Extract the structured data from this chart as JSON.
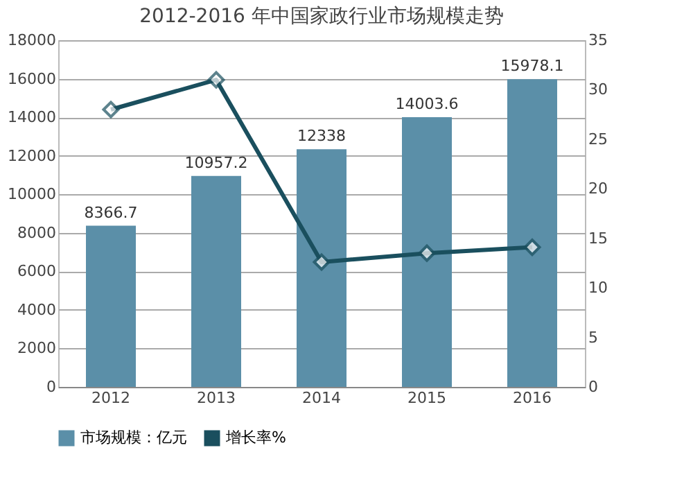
{
  "chart_data": {
    "type": "bar",
    "title": "2012-2016 年中国家政行业市场规模走势",
    "categories": [
      "2012",
      "2013",
      "2014",
      "2015",
      "2016"
    ],
    "series": [
      {
        "name": "市场规模：亿元",
        "color": "#5b8fa8",
        "values": [
          8366.7,
          10957.2,
          12338,
          14003.6,
          15978.1
        ],
        "value_labels": [
          "8366.7",
          "10957.2",
          "12338",
          "14003.6",
          "15978.1"
        ]
      },
      {
        "name": "增长率%",
        "type": "line",
        "axis": "y2",
        "color": "#1a4f5e",
        "marker": "diamond",
        "values": [
          28.0,
          31.0,
          12.6,
          13.5,
          14.1
        ]
      }
    ],
    "ylim": [
      0,
      18000
    ],
    "yticks": [
      0,
      2000,
      4000,
      6000,
      8000,
      10000,
      12000,
      14000,
      16000,
      18000
    ],
    "y2lim": [
      0,
      35
    ],
    "y2ticks": [
      0,
      5,
      10,
      15,
      20,
      25,
      30,
      35
    ],
    "grid": "y",
    "legend": "bottom"
  }
}
